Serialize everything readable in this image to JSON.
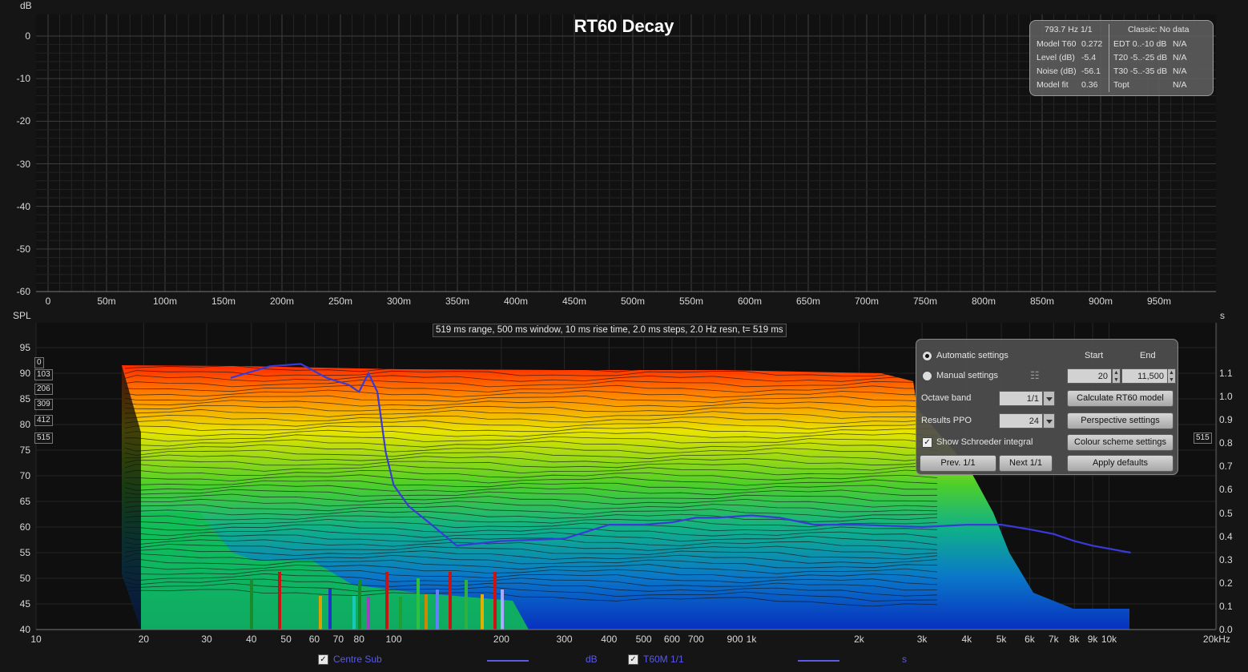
{
  "title": "RT60 Decay",
  "colors": {
    "background": "#151515",
    "grid": "#3a3a3a",
    "curve": "#3a3ad8",
    "text": "#d8d8d8"
  },
  "top_panel": {
    "y_unit": "dB",
    "y_ticks": [
      "0",
      "-10",
      "-20",
      "-30",
      "-40",
      "-50",
      "-60"
    ],
    "x_ticks": [
      "0",
      "50m",
      "100m",
      "150m",
      "200m",
      "250m",
      "300m",
      "350m",
      "400m",
      "450m",
      "500m",
      "550m",
      "600m",
      "650m",
      "700m",
      "750m",
      "800m",
      "850m",
      "900m",
      "950m"
    ]
  },
  "info_box": {
    "header_left": "793.7 Hz 1/1",
    "header_right": "Classic: No data",
    "rows": [
      {
        "label": "Model T60",
        "value": "0.272",
        "label2": "EDT  0..-10 dB",
        "value2": "N/A"
      },
      {
        "label": "Level (dB)",
        "value": "-5.4",
        "label2": "T20 -5..-25 dB",
        "value2": "N/A"
      },
      {
        "label": "Noise (dB)",
        "value": "-56.1",
        "label2": "T30 -5..-35 dB",
        "value2": "N/A"
      },
      {
        "label": "Model fit",
        "value": "0.36",
        "label2": "Topt",
        "value2": "N/A"
      }
    ]
  },
  "bottom_panel": {
    "y_unit_left": "SPL",
    "y_unit_right": "s",
    "y_ticks_left": [
      "95",
      "90",
      "85",
      "80",
      "75",
      "70",
      "65",
      "60",
      "55",
      "50",
      "45",
      "40"
    ],
    "y_ticks_right": [
      "1.1",
      "1.0",
      "0.9",
      "0.8",
      "0.7",
      "0.6",
      "0.5",
      "0.4",
      "0.3",
      "0.2",
      "0.1",
      "0.0"
    ],
    "x_ticks": [
      "10",
      "20",
      "30",
      "40",
      "50",
      "60",
      "70",
      "80",
      "100",
      "200",
      "300",
      "400",
      "500",
      "600",
      "700",
      "900",
      "1k",
      "2k",
      "3k",
      "4k",
      "5k",
      "6k",
      "7k",
      "8k",
      "9k",
      "10k",
      "20kHz"
    ],
    "range_text": "519 ms range, 500 ms window, 10 ms rise time, 2.0 ms steps,  2.0 Hz resn, t= 519 ms",
    "depth_labels": [
      "0",
      "103",
      "206",
      "309",
      "412",
      "515"
    ],
    "depth_right": "515"
  },
  "controls": {
    "automatic_label": "Automatic settings",
    "manual_label": "Manual settings",
    "start_header": "Start",
    "end_header": "End",
    "start_value": "20",
    "end_value": "11,500",
    "octave_label": "Octave band",
    "octave_value": "1/1",
    "ppo_label": "Results PPO",
    "ppo_value": "24",
    "schroeder_label": "Show Schroeder integral",
    "calc_button": "Calculate RT60 model",
    "perspective_button": "Perspective settings",
    "colour_button": "Colour scheme settings",
    "apply_button": "Apply defaults",
    "prev_button": "Prev. 1/1",
    "next_button": "Next 1/1"
  },
  "legend": [
    {
      "name": "Centre Sub",
      "unit": "dB"
    },
    {
      "name": "T60M 1/1",
      "unit": "s"
    }
  ],
  "chart_data": [
    {
      "type": "line",
      "title": "RT60 Decay",
      "ylabel": "dB",
      "ylim": [
        -60,
        0
      ],
      "xlim": [
        0,
        1.0
      ],
      "x_unit": "s",
      "grid": true,
      "series": []
    },
    {
      "type": "line",
      "series": [
        {
          "name": "T60M 1/1",
          "axis": "right (s)",
          "x_hz": [
            35,
            45,
            55,
            65,
            75,
            80,
            85,
            90,
            95,
            100,
            110,
            130,
            150,
            200,
            300,
            400,
            500,
            600,
            700,
            800,
            1000,
            1200,
            1500,
            2000,
            3000,
            4000,
            5000,
            6000,
            7000,
            8000,
            9000,
            11500
          ],
          "y_s": [
            1.08,
            1.13,
            1.14,
            1.08,
            1.05,
            1.02,
            1.1,
            1.02,
            0.76,
            0.62,
            0.53,
            0.44,
            0.36,
            0.38,
            0.39,
            0.45,
            0.45,
            0.46,
            0.48,
            0.48,
            0.49,
            0.48,
            0.45,
            0.45,
            0.44,
            0.45,
            0.45,
            0.43,
            0.41,
            0.38,
            0.36,
            0.33
          ]
        }
      ],
      "xlabel": "",
      "ylabel_left": "SPL",
      "ylabel_right": "s",
      "ylim_left": [
        40,
        95
      ],
      "ylim_right": [
        0.0,
        1.1
      ],
      "x_scale": "log",
      "xlim": [
        10,
        20000
      ],
      "grid": true
    }
  ]
}
